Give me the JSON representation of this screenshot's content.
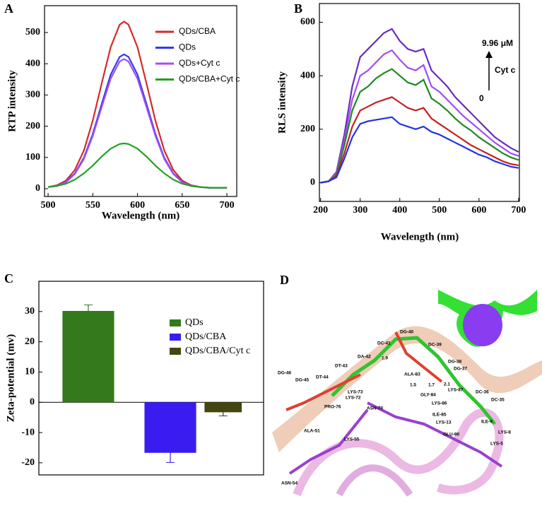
{
  "chart_data": [
    {
      "type": "line",
      "title": "A",
      "x_label": "Wavelength (nm)",
      "y_label": "RTP intensity",
      "x": [
        500,
        510,
        520,
        530,
        540,
        550,
        560,
        570,
        580,
        585,
        590,
        600,
        610,
        620,
        630,
        640,
        650,
        660,
        670,
        680,
        690,
        700
      ],
      "series": [
        {
          "name": "QDs/CBA",
          "color": "#d42a2a",
          "values": [
            5,
            11,
            26,
            60,
            122,
            218,
            338,
            453,
            525,
            535,
            525,
            453,
            338,
            218,
            122,
            60,
            26,
            11,
            5,
            3,
            3,
            3
          ]
        },
        {
          "name": "QDs",
          "color": "#2b3df0",
          "values": [
            5,
            9,
            22,
            49,
            99,
            175,
            272,
            365,
            422,
            430,
            422,
            365,
            272,
            175,
            99,
            49,
            22,
            9,
            5,
            3,
            3,
            3
          ]
        },
        {
          "name": "QDs+Cyt c",
          "color": "#a64cf0",
          "values": [
            5,
            9,
            21,
            47,
            95,
            169,
            262,
            352,
            407,
            415,
            407,
            352,
            262,
            169,
            95,
            47,
            21,
            9,
            5,
            3,
            3,
            3
          ]
        },
        {
          "name": "QDs/CBA+Cyt c",
          "color": "#22a022",
          "values": [
            5,
            9,
            16,
            29,
            49,
            74,
            103,
            128,
            143,
            145,
            143,
            128,
            103,
            74,
            49,
            29,
            16,
            9,
            5,
            3,
            3,
            3
          ]
        }
      ],
      "xlim": [
        496,
        711
      ],
      "ylim": [
        -25,
        586
      ],
      "xticks": [
        500,
        550,
        600,
        650,
        700
      ],
      "yticks": [
        0,
        100,
        200,
        300,
        400,
        500
      ]
    },
    {
      "type": "line",
      "title": "B",
      "x_label": "Wavelength (nm)",
      "y_label": "RLS intensity",
      "x": [
        200,
        220,
        240,
        260,
        280,
        300,
        320,
        340,
        360,
        380,
        400,
        420,
        440,
        460,
        480,
        500,
        520,
        540,
        560,
        580,
        600,
        620,
        640,
        660,
        680,
        700
      ],
      "series": [
        {
          "color": "#6a2bc4",
          "values": [
            0,
            5,
            40,
            180,
            360,
            470,
            500,
            530,
            560,
            575,
            530,
            500,
            490,
            500,
            420,
            390,
            360,
            320,
            290,
            260,
            230,
            200,
            170,
            150,
            130,
            115
          ]
        },
        {
          "color": "#a24ef2",
          "values": [
            0,
            5,
            35,
            160,
            310,
            400,
            420,
            450,
            480,
            495,
            460,
            430,
            420,
            440,
            360,
            340,
            310,
            280,
            250,
            225,
            200,
            175,
            150,
            130,
            110,
            100
          ]
        },
        {
          "color": "#1f8a1f",
          "values": [
            0,
            5,
            30,
            140,
            270,
            340,
            360,
            390,
            410,
            425,
            400,
            375,
            365,
            385,
            315,
            295,
            270,
            240,
            215,
            195,
            170,
            150,
            130,
            110,
            95,
            85
          ]
        },
        {
          "color": "#c42020",
          "values": [
            0,
            5,
            25,
            110,
            210,
            270,
            285,
            300,
            310,
            320,
            300,
            280,
            270,
            280,
            240,
            220,
            200,
            180,
            160,
            140,
            125,
            110,
            95,
            80,
            70,
            65
          ]
        },
        {
          "color": "#2233e0",
          "values": [
            0,
            5,
            20,
            90,
            170,
            220,
            230,
            235,
            240,
            245,
            220,
            210,
            200,
            210,
            190,
            180,
            165,
            150,
            135,
            120,
            105,
            95,
            80,
            70,
            60,
            55
          ]
        }
      ],
      "annotations": [
        "9.96 μM",
        "Cyt c",
        "0"
      ],
      "xlim": [
        197,
        702
      ],
      "ylim": [
        -70,
        670
      ],
      "xticks": [
        200,
        300,
        400,
        500,
        600,
        700
      ],
      "yticks": [
        0,
        200,
        400,
        600
      ]
    },
    {
      "type": "bar",
      "title": "C",
      "y_label": "Zeta-potential (mv)",
      "categories": [
        "QDs",
        "QDs/CBA",
        "QDs/CBA/Cyt c"
      ],
      "values": [
        30.2,
        -16.7,
        -3.3
      ],
      "errors": [
        2.0,
        3.2,
        1.2
      ],
      "colors": [
        "#347a1c",
        "#3b1cf0",
        "#45450f"
      ],
      "ylim": [
        -24,
        40
      ],
      "yticks": [
        -20,
        -10,
        0,
        10,
        20,
        30
      ]
    }
  ],
  "structure": {
    "label": "D",
    "residue_labels": [
      "DG-46",
      "DG-45",
      "DT-44",
      "DT-43",
      "DA-42",
      "DC-41",
      "DG-40",
      "DC-39",
      "DG-38",
      "DG-37",
      "DC-36",
      "DC-35",
      "ALA-83",
      "GLY-84",
      "LYS-87",
      "LYS-86",
      "ILE-85",
      "LYS-13",
      "ILE-9",
      "GLU-90",
      "LYS-8",
      "LYS-5",
      "LYS-73",
      "LYS-72",
      "PRO-76",
      "ASN-70",
      "ALA-51",
      "LYS-55",
      "ASN-54",
      "1.9",
      "1.5",
      "1.7",
      "2.1"
    ]
  }
}
